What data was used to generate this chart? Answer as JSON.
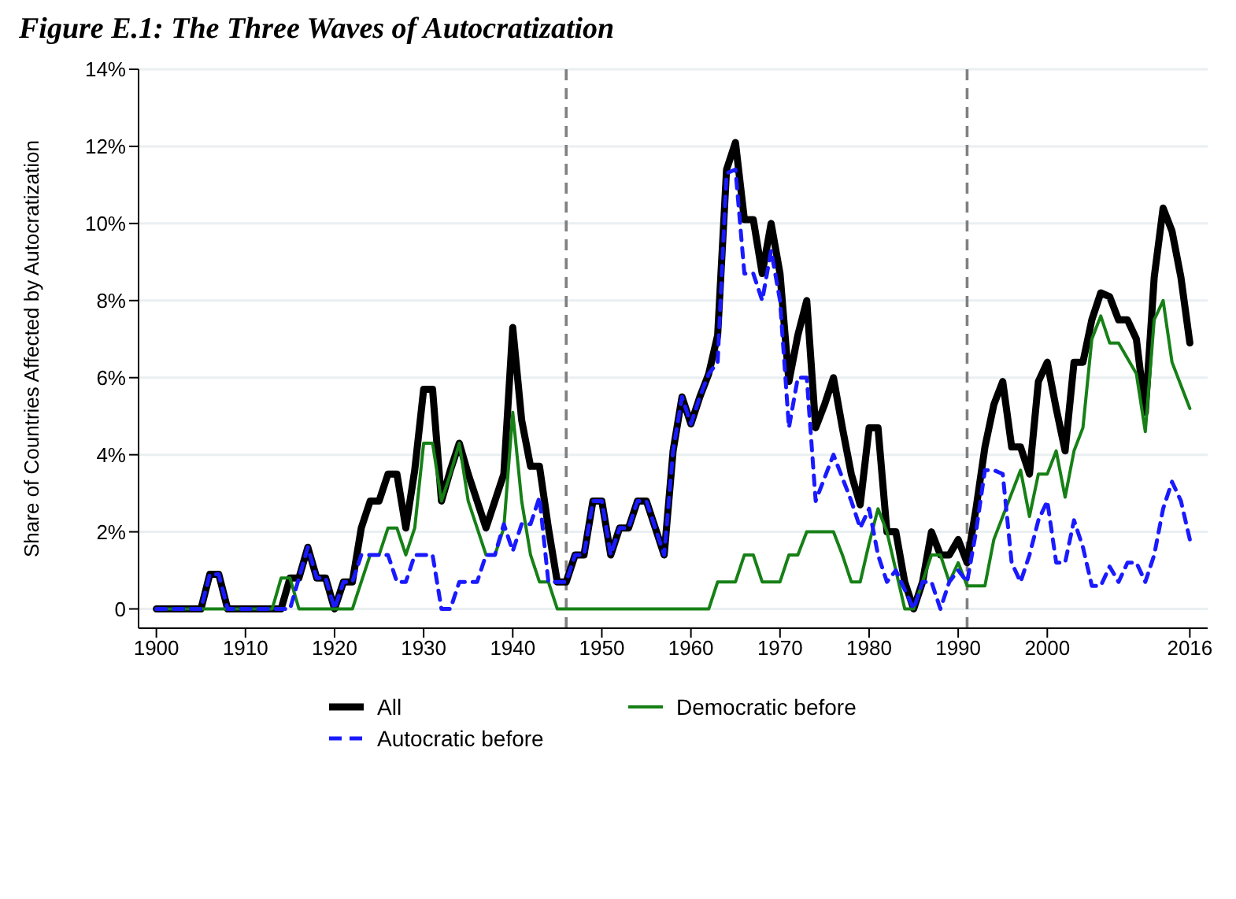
{
  "chart_data": {
    "type": "line",
    "title": "Figure E.1: The Three Waves of Autocratization",
    "ylabel": "Share of Countries Affected by Autocratization",
    "x": [
      1900,
      1901,
      1902,
      1903,
      1904,
      1905,
      1906,
      1907,
      1908,
      1909,
      1910,
      1911,
      1912,
      1913,
      1914,
      1915,
      1916,
      1917,
      1918,
      1919,
      1920,
      1921,
      1922,
      1923,
      1924,
      1925,
      1926,
      1927,
      1928,
      1929,
      1930,
      1931,
      1932,
      1933,
      1934,
      1935,
      1936,
      1937,
      1938,
      1939,
      1940,
      1941,
      1942,
      1943,
      1944,
      1945,
      1946,
      1947,
      1948,
      1949,
      1950,
      1951,
      1952,
      1953,
      1954,
      1955,
      1956,
      1957,
      1958,
      1959,
      1960,
      1961,
      1962,
      1963,
      1964,
      1965,
      1966,
      1967,
      1968,
      1969,
      1970,
      1971,
      1972,
      1973,
      1974,
      1975,
      1976,
      1977,
      1978,
      1979,
      1980,
      1981,
      1982,
      1983,
      1984,
      1985,
      1986,
      1987,
      1988,
      1989,
      1990,
      1991,
      1992,
      1993,
      1994,
      1995,
      1996,
      1997,
      1998,
      1999,
      2000,
      2001,
      2002,
      2003,
      2004,
      2005,
      2006,
      2007,
      2008,
      2009,
      2010,
      2011,
      2012,
      2013,
      2014,
      2015,
      2016
    ],
    "series": [
      {
        "name": "All",
        "color": "#000000",
        "line_style": "solid",
        "values": [
          0,
          0,
          0,
          0,
          0,
          0,
          0.9,
          0.9,
          0,
          0,
          0,
          0,
          0,
          0,
          0,
          0.8,
          0.8,
          1.6,
          0.8,
          0.8,
          0,
          0.7,
          0.7,
          2.1,
          2.8,
          2.8,
          3.5,
          3.5,
          2.1,
          3.6,
          5.7,
          5.7,
          2.8,
          3.6,
          4.3,
          3.5,
          2.8,
          2.1,
          2.8,
          3.5,
          7.3,
          4.9,
          3.7,
          3.7,
          2.1,
          0.7,
          0.7,
          1.4,
          1.4,
          2.8,
          2.8,
          1.4,
          2.1,
          2.1,
          2.8,
          2.8,
          2.1,
          1.4,
          4.1,
          5.5,
          4.8,
          5.5,
          6.1,
          7.1,
          11.4,
          12.1,
          10.1,
          10.1,
          8.7,
          10.0,
          8.7,
          5.9,
          7.1,
          8.0,
          4.7,
          5.3,
          6.0,
          4.7,
          3.5,
          2.7,
          4.7,
          4.7,
          2.0,
          2.0,
          0.7,
          0,
          0.7,
          2.0,
          1.4,
          1.4,
          1.8,
          1.2,
          2.6,
          4.2,
          5.3,
          5.9,
          4.2,
          4.2,
          3.5,
          5.9,
          6.4,
          5.2,
          4.1,
          6.4,
          6.4,
          7.5,
          8.2,
          8.1,
          7.5,
          7.5,
          7.0,
          5.1,
          8.6,
          10.4,
          9.8,
          8.6,
          6.9
        ]
      },
      {
        "name": "Democratic before",
        "color": "#168016",
        "line_style": "solid",
        "values": [
          0,
          0,
          0,
          0,
          0,
          0,
          0,
          0,
          0,
          0,
          0,
          0,
          0,
          0,
          0.8,
          0.8,
          0,
          0,
          0,
          0,
          0,
          0,
          0,
          0.7,
          1.4,
          1.4,
          2.1,
          2.1,
          1.4,
          2.1,
          4.3,
          4.3,
          2.8,
          3.5,
          4.3,
          2.8,
          2.1,
          1.4,
          1.4,
          2.1,
          5.1,
          2.8,
          1.4,
          0.7,
          0.7,
          0,
          0,
          0,
          0,
          0,
          0,
          0,
          0,
          0,
          0,
          0,
          0,
          0,
          0,
          0,
          0,
          0,
          0,
          0.7,
          0.7,
          0.7,
          1.4,
          1.4,
          0.7,
          0.7,
          0.7,
          1.4,
          1.4,
          2.0,
          2.0,
          2.0,
          2.0,
          1.4,
          0.7,
          0.7,
          1.7,
          2.6,
          2.0,
          1.0,
          0,
          0,
          0.7,
          1.4,
          1.4,
          0.7,
          1.2,
          0.6,
          0.6,
          0.6,
          1.8,
          2.4,
          3.0,
          3.6,
          2.4,
          3.5,
          3.5,
          4.1,
          2.9,
          4.1,
          4.7,
          7.0,
          7.6,
          6.9,
          6.9,
          6.5,
          6.1,
          4.6,
          7.5,
          8.0,
          6.4,
          5.8,
          5.2
        ]
      },
      {
        "name": "Autocratic before",
        "color": "#1a1aff",
        "line_style": "dashed",
        "values": [
          0,
          0,
          0,
          0,
          0,
          0,
          0.9,
          0.9,
          0,
          0,
          0,
          0,
          0,
          0,
          0,
          0,
          0.8,
          1.6,
          0.8,
          0.8,
          0,
          0.7,
          0.7,
          1.4,
          1.4,
          1.4,
          1.4,
          0.7,
          0.7,
          1.4,
          1.4,
          1.4,
          0,
          0,
          0.7,
          0.7,
          0.7,
          1.4,
          1.4,
          2.2,
          1.5,
          2.2,
          2.2,
          2.9,
          0.7,
          0.7,
          0.7,
          1.4,
          1.4,
          2.8,
          2.8,
          1.4,
          2.1,
          2.1,
          2.8,
          2.8,
          2.1,
          1.4,
          4.1,
          5.5,
          4.8,
          5.5,
          6.1,
          6.4,
          11.3,
          11.4,
          8.7,
          8.7,
          8.0,
          9.3,
          8.0,
          4.7,
          6.0,
          6.0,
          2.8,
          3.4,
          4.0,
          3.4,
          2.8,
          2.1,
          2.6,
          1.4,
          0.7,
          1.0,
          0.5,
          0,
          0.7,
          0.7,
          0,
          0.7,
          1.0,
          0.7,
          2.0,
          3.6,
          3.6,
          3.5,
          1.2,
          0.7,
          1.4,
          2.3,
          2.8,
          1.2,
          1.2,
          2.3,
          1.6,
          0.6,
          0.6,
          1.1,
          0.7,
          1.2,
          1.2,
          0.7,
          1.4,
          2.6,
          3.3,
          2.8,
          1.8
        ]
      }
    ],
    "xlim": [
      1898,
      2018
    ],
    "xticks": [
      1900,
      1910,
      1920,
      1930,
      1940,
      1950,
      1960,
      1970,
      1980,
      1990,
      2000,
      2016
    ],
    "ylim": [
      -0.5,
      14
    ],
    "yticks": [
      0,
      {
        "value": 2,
        "label": "2%"
      },
      {
        "value": 4,
        "label": "4%"
      },
      {
        "value": 6,
        "label": "6%"
      },
      {
        "value": 8,
        "label": "8%"
      },
      {
        "value": 10,
        "label": "10%"
      },
      {
        "value": 12,
        "label": "12%"
      },
      {
        "value": 14,
        "label": "14%"
      }
    ],
    "ref_lines": [
      {
        "axis": "x",
        "value": 1946,
        "color": "#808080",
        "line_style": "dashed"
      },
      {
        "axis": "x",
        "value": 1991,
        "color": "#808080",
        "line_style": "dashed"
      }
    ],
    "grid": "y",
    "legend": "bottom"
  }
}
